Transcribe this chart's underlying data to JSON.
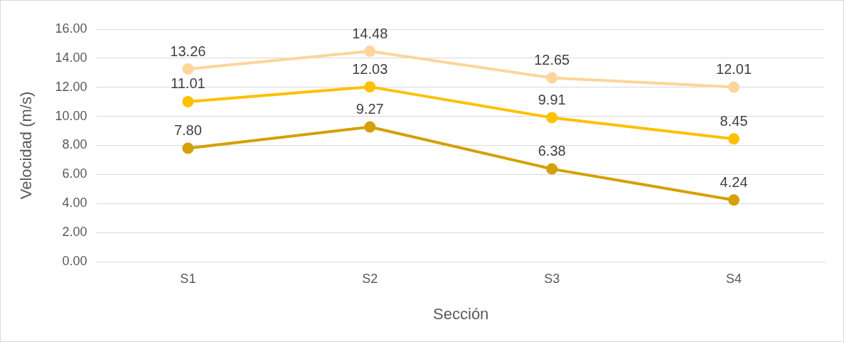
{
  "chart_data": {
    "type": "line",
    "xlabel": "Sección",
    "ylabel": "Velocidad (m/s)",
    "categories": [
      "S1",
      "S2",
      "S3",
      "S4"
    ],
    "series": [
      {
        "color": "#fdd59b",
        "values": [
          13.26,
          14.48,
          12.65,
          12.01
        ],
        "value_labels": [
          "13.26",
          "14.48",
          "12.65",
          "12.01"
        ]
      },
      {
        "color": "#ffc000",
        "values": [
          11.01,
          12.03,
          9.91,
          8.45
        ],
        "value_labels": [
          "11.01",
          "12.03",
          "9.91",
          "8.45"
        ]
      },
      {
        "color": "#d4a004",
        "values": [
          7.8,
          9.27,
          6.38,
          4.24
        ],
        "value_labels": [
          "7.80",
          "9.27",
          "6.38",
          "4.24"
        ]
      }
    ],
    "ylim": [
      0,
      16
    ],
    "yticks": [
      {
        "value": 0,
        "label": "0.00"
      },
      {
        "value": 2,
        "label": "2.00"
      },
      {
        "value": 4,
        "label": "4.00"
      },
      {
        "value": 6,
        "label": "6.00"
      },
      {
        "value": 8,
        "label": "8.00"
      },
      {
        "value": 10,
        "label": "10.00"
      },
      {
        "value": 12,
        "label": "12.00"
      },
      {
        "value": 14,
        "label": "14.00"
      },
      {
        "value": 16,
        "label": "16.00"
      }
    ],
    "grid": "y",
    "marker": "circle",
    "line_style": "solid",
    "legend": false
  }
}
